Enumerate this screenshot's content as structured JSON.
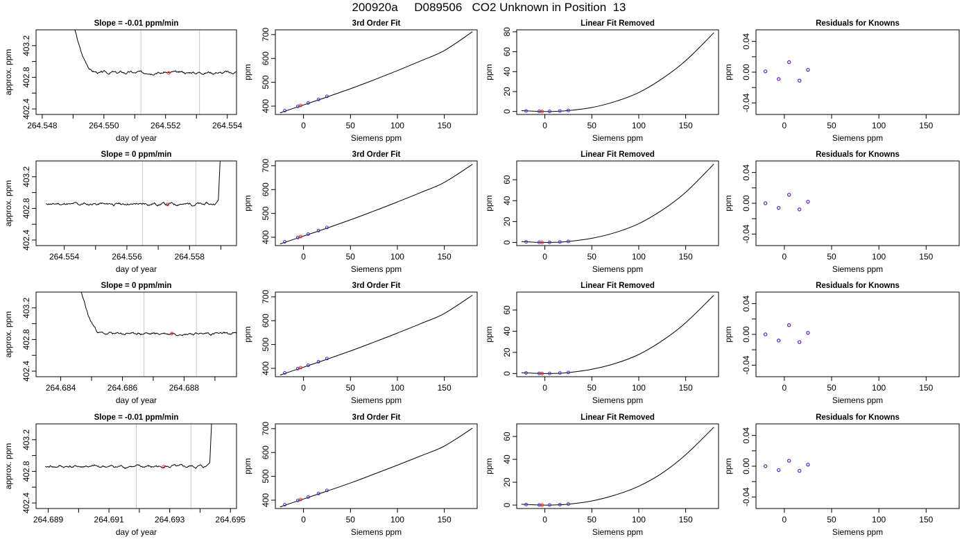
{
  "page_title": "200920a     D089506   CO2 Unknown in Position  13",
  "colors": {
    "curve": "#000000",
    "marker": "#ff3030",
    "known": "#3a2be0",
    "unknown": "#ff2020",
    "guide": "#c8c8c8"
  },
  "chart_data": [
    {
      "type": "line",
      "row": 0,
      "kind": "timeseries",
      "title": "Slope =  -0.01  ppm/min",
      "xlabel": "day of year",
      "ylabel": "approx. ppm",
      "xlim": [
        264.5478,
        264.5543
      ],
      "ylim": [
        402.33,
        403.4
      ],
      "xticks": [
        264.548,
        264.549,
        264.55,
        264.551,
        264.552,
        264.553,
        264.554
      ],
      "xtick_labels": [
        "264.548",
        "",
        "264.550",
        "",
        "264.552",
        "",
        "264.554"
      ],
      "yticks": [
        402.4,
        402.6,
        402.8,
        403.0,
        403.2
      ],
      "ytick_labels": [
        "402.4",
        "",
        "402.8",
        "",
        "403.2"
      ],
      "spike": "start",
      "spike_x": 264.5491,
      "plateau_start": 264.5494,
      "plateau_end": 264.5542,
      "level": 402.86,
      "seed": 3,
      "vlines": [
        264.5512,
        264.5531
      ],
      "marker": {
        "x": 264.5521,
        "y": 402.855
      }
    },
    {
      "type": "line",
      "row": 1,
      "kind": "timeseries",
      "title": "Slope =  0  ppm/min",
      "xlabel": "day of year",
      "ylabel": "approx. ppm",
      "xlim": [
        264.5531,
        264.5595
      ],
      "ylim": [
        402.33,
        403.4
      ],
      "xticks": [
        264.554,
        264.555,
        264.556,
        264.557,
        264.558,
        264.559
      ],
      "xtick_labels": [
        "264.554",
        "",
        "264.556",
        "",
        "264.558",
        ""
      ],
      "yticks": [
        402.4,
        402.6,
        402.8,
        403.0,
        403.2
      ],
      "ytick_labels": [
        "402.4",
        "",
        "402.8",
        "",
        "403.2"
      ],
      "spike": "end",
      "spike_x": 264.559,
      "plateau_start": 264.5534,
      "plateau_end": 264.5588,
      "level": 402.855,
      "seed": 11,
      "vlines": [
        264.5565,
        264.5582
      ],
      "marker": {
        "x": 264.5573,
        "y": 402.85
      }
    },
    {
      "type": "line",
      "row": 2,
      "kind": "timeseries",
      "title": "Slope =  0  ppm/min",
      "xlabel": "day of year",
      "ylabel": "approx. ppm",
      "xlim": [
        264.6832,
        264.6897
      ],
      "ylim": [
        402.33,
        403.4
      ],
      "xticks": [
        264.684,
        264.685,
        264.686,
        264.687,
        264.688,
        264.689
      ],
      "xtick_labels": [
        "264.684",
        "",
        "264.686",
        "",
        "264.688",
        ""
      ],
      "yticks": [
        402.4,
        402.6,
        402.8,
        403.0,
        403.2
      ],
      "ytick_labels": [
        "402.4",
        "",
        "402.8",
        "",
        "403.2"
      ],
      "spike": "start",
      "spike_x": 264.6847,
      "plateau_start": 264.685,
      "plateau_end": 264.6895,
      "level": 402.875,
      "seed": 23,
      "vlines": [
        264.6867,
        264.6884
      ],
      "marker": {
        "x": 264.6876,
        "y": 402.875
      }
    },
    {
      "type": "line",
      "row": 3,
      "kind": "timeseries",
      "title": "Slope =  -0.01  ppm/min",
      "xlabel": "day of year",
      "ylabel": "approx. ppm",
      "xlim": [
        264.6886,
        264.6952
      ],
      "ylim": [
        402.33,
        403.4
      ],
      "xticks": [
        264.689,
        264.69,
        264.691,
        264.692,
        264.693,
        264.694,
        264.695
      ],
      "xtick_labels": [
        "264.689",
        "",
        "264.691",
        "",
        "264.693",
        "",
        "264.695"
      ],
      "yticks": [
        402.4,
        402.6,
        402.8,
        403.0,
        403.2
      ],
      "ytick_labels": [
        "402.4",
        "",
        "402.8",
        "",
        "403.2"
      ],
      "spike": "end",
      "spike_x": 264.6944,
      "plateau_start": 264.6889,
      "plateau_end": 264.6942,
      "level": 402.86,
      "seed": 41,
      "vlines": [
        264.6919,
        264.6937
      ],
      "marker": {
        "x": 264.6928,
        "y": 402.858
      }
    },
    {
      "type": "line",
      "row": 0,
      "kind": "fit3",
      "title": "3rd Order Fit",
      "xlabel": "Siemens ppm",
      "ylabel": "ppm",
      "xlim": [
        -30,
        185
      ],
      "ylim": [
        365,
        720
      ],
      "xticks": [
        0,
        50,
        100,
        150
      ],
      "xtick_labels": [
        "0",
        "50",
        "100",
        "150"
      ],
      "yticks": [
        400,
        500,
        600,
        700
      ],
      "ytick_labels": [
        "400",
        "500",
        "600",
        "700"
      ],
      "curve": {
        "x": [
          -25,
          0,
          25,
          50,
          75,
          100,
          125,
          150,
          180
        ],
        "y": [
          372,
          405,
          438,
          473,
          510,
          549,
          590,
          633,
          712
        ]
      },
      "knowns": {
        "x": [
          -20,
          -6,
          5,
          16,
          25
        ],
        "y": [
          381,
          399,
          413,
          428,
          441
        ]
      },
      "unknown": {
        "x": [
          -3
        ],
        "y": [
          403
        ]
      }
    },
    {
      "type": "line",
      "row": 1,
      "kind": "fit3",
      "title": "3rd Order Fit",
      "xlabel": "Siemens ppm",
      "ylabel": "ppm",
      "xlim": [
        -30,
        185
      ],
      "ylim": [
        365,
        720
      ],
      "xticks": [
        0,
        50,
        100,
        150
      ],
      "xtick_labels": [
        "0",
        "50",
        "100",
        "150"
      ],
      "yticks": [
        400,
        500,
        600,
        700
      ],
      "ytick_labels": [
        "400",
        "500",
        "600",
        "700"
      ],
      "curve": {
        "x": [
          -25,
          0,
          25,
          50,
          75,
          100,
          125,
          150,
          180
        ],
        "y": [
          372,
          405,
          438,
          473,
          510,
          548,
          588,
          630,
          706
        ]
      },
      "knowns": {
        "x": [
          -20,
          -6,
          5,
          16,
          25
        ],
        "y": [
          381,
          399,
          413,
          428,
          441
        ]
      },
      "unknown": {
        "x": [
          -3
        ],
        "y": [
          403
        ]
      }
    },
    {
      "type": "line",
      "row": 2,
      "kind": "fit3",
      "title": "3rd Order Fit",
      "xlabel": "Siemens ppm",
      "ylabel": "ppm",
      "xlim": [
        -30,
        185
      ],
      "ylim": [
        365,
        720
      ],
      "xticks": [
        0,
        50,
        100,
        150
      ],
      "xtick_labels": [
        "0",
        "50",
        "100",
        "150"
      ],
      "yticks": [
        400,
        500,
        600,
        700
      ],
      "ytick_labels": [
        "400",
        "500",
        "600",
        "700"
      ],
      "curve": {
        "x": [
          -25,
          0,
          25,
          50,
          75,
          100,
          125,
          150,
          180
        ],
        "y": [
          372,
          405,
          438,
          473,
          510,
          548,
          588,
          630,
          707
        ]
      },
      "knowns": {
        "x": [
          -20,
          -6,
          5,
          16,
          25
        ],
        "y": [
          381,
          399,
          413,
          428,
          441
        ]
      },
      "unknown": {
        "x": [
          -3
        ],
        "y": [
          403
        ]
      }
    },
    {
      "type": "line",
      "row": 3,
      "kind": "fit3",
      "title": "3rd Order Fit",
      "xlabel": "Siemens ppm",
      "ylabel": "ppm",
      "xlim": [
        -30,
        185
      ],
      "ylim": [
        365,
        720
      ],
      "xticks": [
        0,
        50,
        100,
        150
      ],
      "xtick_labels": [
        "0",
        "50",
        "100",
        "150"
      ],
      "yticks": [
        400,
        500,
        600,
        700
      ],
      "ytick_labels": [
        "400",
        "500",
        "600",
        "700"
      ],
      "curve": {
        "x": [
          -25,
          0,
          25,
          50,
          75,
          100,
          125,
          150,
          180
        ],
        "y": [
          372,
          405,
          438,
          472,
          509,
          547,
          586,
          627,
          702
        ]
      },
      "knowns": {
        "x": [
          -20,
          -6,
          5,
          16,
          25
        ],
        "y": [
          381,
          399,
          413,
          428,
          441
        ]
      },
      "unknown": {
        "x": [
          -3
        ],
        "y": [
          403
        ]
      }
    },
    {
      "type": "line",
      "row": 0,
      "kind": "linres",
      "title": "Linear Fit Removed",
      "xlabel": "Siemens ppm",
      "ylabel": "ppm",
      "xlim": [
        -30,
        185
      ],
      "ylim": [
        -3,
        82
      ],
      "xticks": [
        0,
        50,
        100,
        150
      ],
      "xtick_labels": [
        "0",
        "50",
        "100",
        "150"
      ],
      "yticks": [
        0,
        20,
        40,
        60,
        80
      ],
      "ytick_labels": [
        "0",
        "20",
        "40",
        "60",
        "80"
      ],
      "curve": {
        "x": [
          -25,
          -10,
          0,
          10,
          25,
          50,
          75,
          100,
          125,
          150,
          180
        ],
        "y": [
          0.8,
          0.2,
          0,
          0.1,
          0.9,
          4,
          10,
          19,
          33,
          51,
          79
        ]
      },
      "knowns": {
        "x": [
          -20,
          -6,
          5,
          16,
          25
        ],
        "y": [
          0.6,
          0.1,
          0.1,
          0.5,
          1.0
        ]
      },
      "unknown": {
        "x": [
          -3
        ],
        "y": [
          0
        ]
      }
    },
    {
      "type": "line",
      "row": 1,
      "kind": "linres",
      "title": "Linear Fit Removed",
      "xlabel": "Siemens ppm",
      "ylabel": "ppm",
      "xlim": [
        -30,
        185
      ],
      "ylim": [
        -3,
        78
      ],
      "xticks": [
        0,
        50,
        100,
        150
      ],
      "xtick_labels": [
        "0",
        "50",
        "100",
        "150"
      ],
      "yticks": [
        0,
        20,
        40,
        60
      ],
      "ytick_labels": [
        "0",
        "20",
        "40",
        "60"
      ],
      "curve": {
        "x": [
          -25,
          -10,
          0,
          10,
          25,
          50,
          75,
          100,
          125,
          150,
          180
        ],
        "y": [
          0.8,
          0.2,
          0,
          0.1,
          0.9,
          4,
          9.5,
          18,
          31,
          48,
          75
        ]
      },
      "knowns": {
        "x": [
          -20,
          -6,
          5,
          16,
          25
        ],
        "y": [
          0.6,
          0.1,
          0.1,
          0.5,
          1.0
        ]
      },
      "unknown": {
        "x": [
          -3
        ],
        "y": [
          0
        ]
      }
    },
    {
      "type": "line",
      "row": 2,
      "kind": "linres",
      "title": "Linear Fit Removed",
      "xlabel": "Siemens ppm",
      "ylabel": "ppm",
      "xlim": [
        -30,
        185
      ],
      "ylim": [
        -3,
        77
      ],
      "xticks": [
        0,
        50,
        100,
        150
      ],
      "xtick_labels": [
        "0",
        "50",
        "100",
        "150"
      ],
      "yticks": [
        0,
        20,
        40,
        60
      ],
      "ytick_labels": [
        "0",
        "20",
        "40",
        "60"
      ],
      "curve": {
        "x": [
          -25,
          -10,
          0,
          10,
          25,
          50,
          75,
          100,
          125,
          150,
          180
        ],
        "y": [
          0.8,
          0.2,
          0,
          0.1,
          0.9,
          4,
          9.5,
          18,
          31,
          48,
          74
        ]
      },
      "knowns": {
        "x": [
          -20,
          -6,
          5,
          16,
          25
        ],
        "y": [
          0.6,
          0.1,
          0.1,
          0.5,
          1.0
        ]
      },
      "unknown": {
        "x": [
          -3
        ],
        "y": [
          0
        ]
      }
    },
    {
      "type": "line",
      "row": 3,
      "kind": "linres",
      "title": "Linear Fit Removed",
      "xlabel": "Siemens ppm",
      "ylabel": "ppm",
      "xlim": [
        -30,
        185
      ],
      "ylim": [
        -3,
        71
      ],
      "xticks": [
        0,
        50,
        100,
        150
      ],
      "xtick_labels": [
        "0",
        "50",
        "100",
        "150"
      ],
      "yticks": [
        0,
        20,
        40,
        60
      ],
      "ytick_labels": [
        "0",
        "20",
        "40",
        "60"
      ],
      "curve": {
        "x": [
          -25,
          -10,
          0,
          10,
          25,
          50,
          75,
          100,
          125,
          150,
          180
        ],
        "y": [
          0.7,
          0.2,
          0,
          0.1,
          0.8,
          3.6,
          8.8,
          16.5,
          28,
          44,
          68
        ]
      },
      "knowns": {
        "x": [
          -20,
          -6,
          5,
          16,
          25
        ],
        "y": [
          0.5,
          0.1,
          0.1,
          0.4,
          0.9
        ]
      },
      "unknown": {
        "x": [
          -3
        ],
        "y": [
          0
        ]
      }
    },
    {
      "type": "scatter",
      "row": 0,
      "kind": "resid",
      "title": "Residuals for Knowns",
      "xlabel": "Siemens ppm",
      "ylabel": "ppm",
      "xlim": [
        -30,
        185
      ],
      "ylim": [
        -0.055,
        0.055
      ],
      "xticks": [
        0,
        50,
        100,
        150
      ],
      "xtick_labels": [
        "0",
        "50",
        "100",
        "150"
      ],
      "yticks": [
        -0.04,
        -0.02,
        0,
        0.02,
        0.04
      ],
      "ytick_labels": [
        "-0.04",
        "",
        "0.00",
        "",
        "0.04"
      ],
      "knowns": {
        "x": [
          -20,
          -6,
          5,
          16,
          25
        ],
        "y": [
          0.001,
          -0.009,
          0.013,
          -0.011,
          0.003
        ]
      }
    },
    {
      "type": "scatter",
      "row": 1,
      "kind": "resid",
      "title": "Residuals for Knowns",
      "xlabel": "Siemens ppm",
      "ylabel": "ppm",
      "xlim": [
        -30,
        185
      ],
      "ylim": [
        -0.055,
        0.055
      ],
      "xticks": [
        0,
        50,
        100,
        150
      ],
      "xtick_labels": [
        "0",
        "50",
        "100",
        "150"
      ],
      "yticks": [
        -0.04,
        -0.02,
        0,
        0.02,
        0.04
      ],
      "ytick_labels": [
        "-0.04",
        "",
        "0.00",
        "",
        "0.04"
      ],
      "knowns": {
        "x": [
          -20,
          -6,
          5,
          16,
          25
        ],
        "y": [
          0.0,
          -0.006,
          0.011,
          -0.008,
          0.002
        ]
      }
    },
    {
      "type": "scatter",
      "row": 2,
      "kind": "resid",
      "title": "Residuals for Knowns",
      "xlabel": "Siemens ppm",
      "ylabel": "ppm",
      "xlim": [
        -30,
        185
      ],
      "ylim": [
        -0.055,
        0.055
      ],
      "xticks": [
        0,
        50,
        100,
        150
      ],
      "xtick_labels": [
        "0",
        "50",
        "100",
        "150"
      ],
      "yticks": [
        -0.04,
        -0.02,
        0,
        0.02,
        0.04
      ],
      "ytick_labels": [
        "-0.04",
        "",
        "0.00",
        "",
        "0.04"
      ],
      "knowns": {
        "x": [
          -20,
          -6,
          5,
          16,
          25
        ],
        "y": [
          0.0,
          -0.008,
          0.012,
          -0.01,
          0.002
        ]
      }
    },
    {
      "type": "scatter",
      "row": 3,
      "kind": "resid",
      "title": "Residuals for Knowns",
      "xlabel": "Siemens ppm",
      "ylabel": "ppm",
      "xlim": [
        -30,
        185
      ],
      "ylim": [
        -0.055,
        0.055
      ],
      "xticks": [
        0,
        50,
        100,
        150
      ],
      "xtick_labels": [
        "0",
        "50",
        "100",
        "150"
      ],
      "yticks": [
        -0.04,
        -0.02,
        0,
        0.02,
        0.04
      ],
      "ytick_labels": [
        "-0.04",
        "",
        "0.00",
        "",
        "0.04"
      ],
      "knowns": {
        "x": [
          -20,
          -6,
          5,
          16,
          25
        ],
        "y": [
          0.0,
          -0.005,
          0.007,
          -0.006,
          0.002
        ]
      }
    }
  ]
}
